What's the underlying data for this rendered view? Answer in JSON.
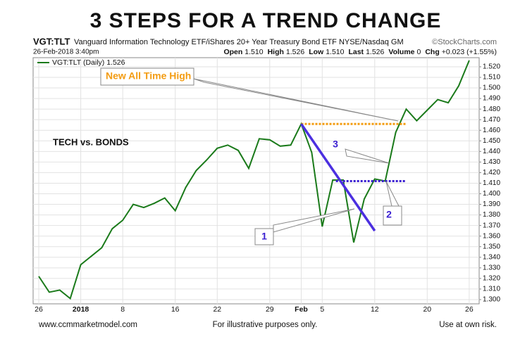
{
  "chart_data": {
    "type": "line",
    "title": "3 STEPS FOR A TREND CHANGE",
    "symbol": "VGT:TLT",
    "description": "Vanguard Information Technology ETF/iShares 20+ Year Treasury Bond ETF NYSE/Nasdaq GM",
    "source": "©StockCharts.com",
    "timestamp": "26-Feb-2018 3:40pm",
    "quote": [
      {
        "label": "Open",
        "value": "1.510"
      },
      {
        "label": "High",
        "value": "1.526"
      },
      {
        "label": "Low",
        "value": "1.510"
      },
      {
        "label": "Last",
        "value": "1.526"
      },
      {
        "label": "Volume",
        "value": "0"
      },
      {
        "label": "Chg",
        "value": "+0.023 (+1.55%)"
      }
    ],
    "categories": [
      "26",
      null,
      null,
      null,
      "2018",
      null,
      null,
      null,
      "8",
      null,
      null,
      null,
      null,
      "16",
      null,
      null,
      null,
      "22",
      null,
      null,
      null,
      null,
      "29",
      null,
      null,
      "Feb",
      null,
      "5",
      null,
      null,
      null,
      null,
      "12",
      null,
      null,
      null,
      null,
      "20",
      null,
      null,
      null,
      "26"
    ],
    "series": [
      {
        "name": "VGT:TLT (Daily) 1.526",
        "color": "#1a7a1a",
        "values": [
          1.322,
          1.307,
          1.309,
          1.301,
          1.333,
          1.341,
          1.349,
          1.367,
          1.375,
          1.39,
          1.387,
          1.391,
          1.396,
          1.384,
          1.406,
          1.422,
          1.432,
          1.443,
          1.446,
          1.441,
          1.424,
          1.452,
          1.451,
          1.445,
          1.446,
          1.466,
          1.439,
          1.369,
          1.413,
          1.413,
          1.354,
          1.395,
          1.414,
          1.412,
          1.458,
          1.48,
          1.469,
          1.479,
          1.489,
          1.486,
          1.502,
          1.526
        ]
      }
    ],
    "ylim": [
      1.296,
      1.5286
    ],
    "yticks": [
      {
        "value": 1.3,
        "label": "1.300"
      },
      {
        "value": 1.31,
        "label": "1.310"
      },
      {
        "value": 1.32,
        "label": "1.320"
      },
      {
        "value": 1.33,
        "label": "1.330"
      },
      {
        "value": 1.34,
        "label": "1.340"
      },
      {
        "value": 1.35,
        "label": "1.350"
      },
      {
        "value": 1.36,
        "label": "1.360"
      },
      {
        "value": 1.37,
        "label": "1.370"
      },
      {
        "value": 1.38,
        "label": "1.380"
      },
      {
        "value": 1.39,
        "label": "1.390"
      },
      {
        "value": 1.4,
        "label": "1.400"
      },
      {
        "value": 1.41,
        "label": "1.410"
      },
      {
        "value": 1.42,
        "label": "1.420"
      },
      {
        "value": 1.43,
        "label": "1.430"
      },
      {
        "value": 1.44,
        "label": "1.440"
      },
      {
        "value": 1.45,
        "label": "1.450"
      },
      {
        "value": 1.46,
        "label": "1.460"
      },
      {
        "value": 1.47,
        "label": "1.470"
      },
      {
        "value": 1.48,
        "label": "1.480"
      },
      {
        "value": 1.49,
        "label": "1.490"
      },
      {
        "value": 1.5,
        "label": "1.500"
      },
      {
        "value": 1.51,
        "label": "1.510"
      },
      {
        "value": 1.52,
        "label": "1.520"
      }
    ],
    "grid": true,
    "hlines": [
      {
        "value": 1.466,
        "from": 25,
        "to": 35,
        "color": "#f39c12"
      },
      {
        "value": 1.412,
        "from": 28.3,
        "to": 35,
        "color": "#3a1fd1"
      }
    ],
    "trend_line": {
      "x": [
        25,
        32
      ],
      "y": [
        1.466,
        1.365
      ],
      "color": "#4b2fe0"
    },
    "annotations": [
      "New All Time High",
      "1",
      "2",
      "3",
      "TECH vs. BONDS"
    ],
    "footer": [
      "www.ccmmarketmodel.com",
      "For illustrative purposes only.",
      "Use at own risk."
    ]
  }
}
